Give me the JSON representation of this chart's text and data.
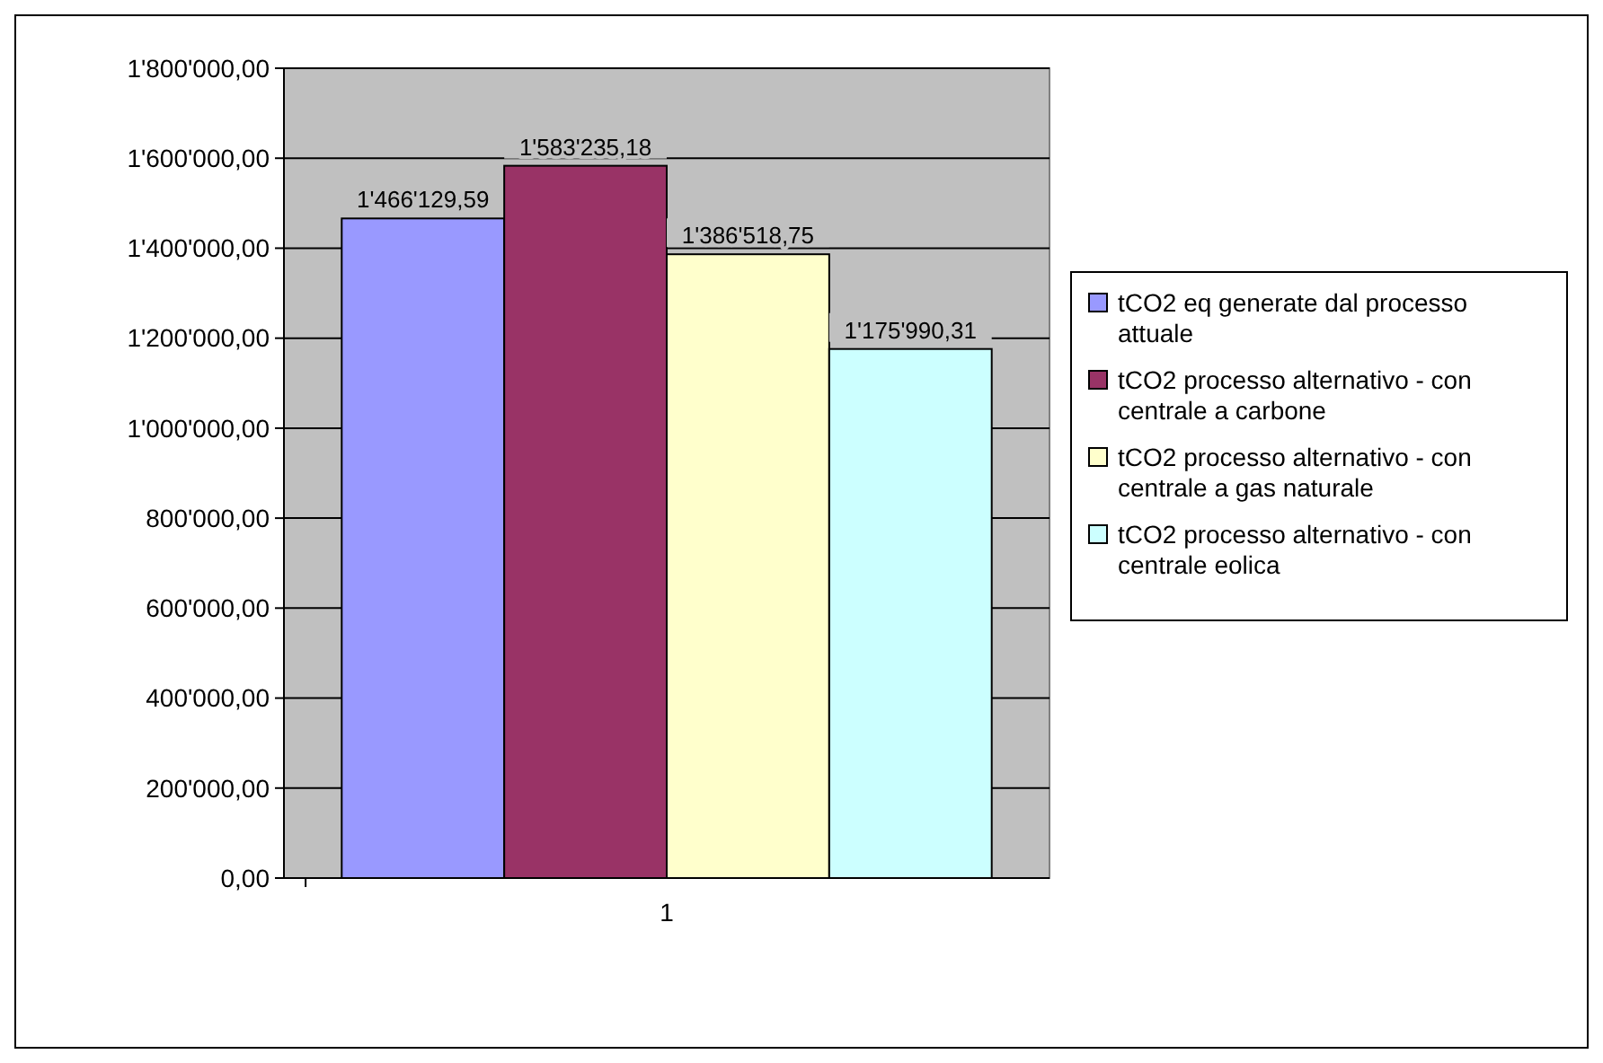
{
  "chart_data": {
    "type": "bar",
    "categories": [
      "1"
    ],
    "series": [
      {
        "name": "tCO2 eq generate dal processo attuale",
        "color": "#9999ff",
        "values": [
          1466129.59
        ],
        "value_labels": [
          "1'466'129,59"
        ]
      },
      {
        "name": "tCO2 processo alternativo - con centrale a carbone",
        "color": "#993366",
        "values": [
          1583235.18
        ],
        "value_labels": [
          "1'583'235,18"
        ]
      },
      {
        "name": "tCO2 processo alternativo - con centrale a gas naturale",
        "color": "#ffffcc",
        "values": [
          1386518.75
        ],
        "value_labels": [
          "1'386'518,75"
        ]
      },
      {
        "name": "tCO2 processo alternativo - con centrale eolica",
        "color": "#ccffff",
        "values": [
          1175990.31
        ],
        "value_labels": [
          "1'175'990,31"
        ]
      }
    ],
    "ylim": [
      0,
      1800000
    ],
    "yticks": [
      {
        "value": 0,
        "label": "0,00"
      },
      {
        "value": 200000,
        "label": "200'000,00"
      },
      {
        "value": 400000,
        "label": "400'000,00"
      },
      {
        "value": 600000,
        "label": "600'000,00"
      },
      {
        "value": 800000,
        "label": "800'000,00"
      },
      {
        "value": 1000000,
        "label": "1'000'000,00"
      },
      {
        "value": 1200000,
        "label": "1'200'000,00"
      },
      {
        "value": 1400000,
        "label": "1'400'000,00"
      },
      {
        "value": 1600000,
        "label": "1'600'000,00"
      },
      {
        "value": 1800000,
        "label": "1'800'000,00"
      }
    ],
    "grid": "y",
    "legend": "right"
  }
}
